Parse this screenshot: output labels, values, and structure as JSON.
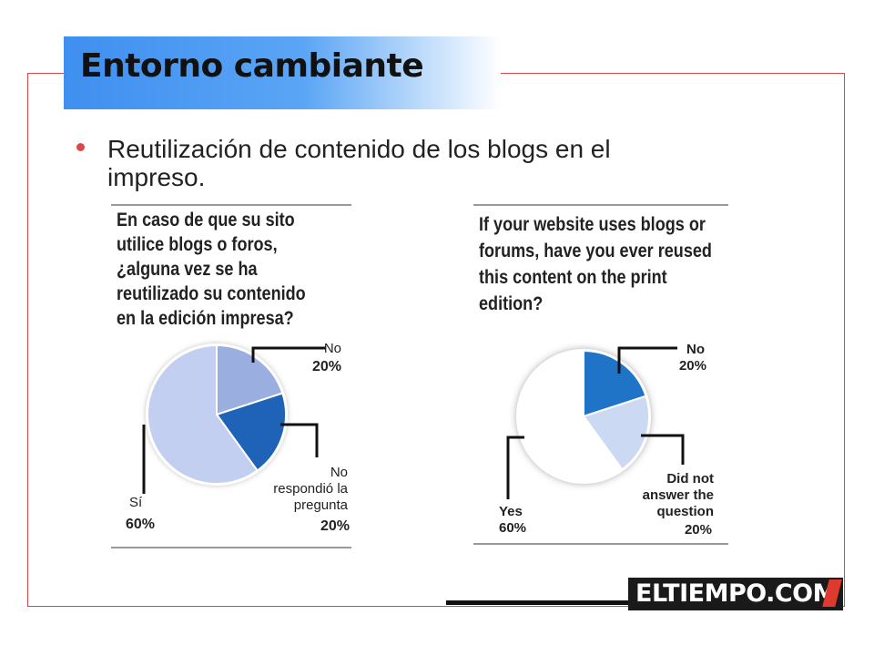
{
  "title": "Entorno cambiante",
  "bullet": "Reutilización de contenido de los blogs en el impreso.",
  "logo": "ELTIEMPO.COM",
  "chart_data": [
    {
      "type": "pie",
      "title": "En caso de que su sito utilice blogs o foros, ¿alguna vez se ha reutilizado su contenido en la edición impresa?",
      "slices": [
        {
          "label": "No",
          "value": 20,
          "value_label": "20%",
          "color": "#9aaee0"
        },
        {
          "label": "No respondió la pregunta",
          "value": 20,
          "value_label": "20%",
          "color": "#1f63b8"
        },
        {
          "label": "Sí",
          "value": 60,
          "value_label": "60%",
          "color": "#c3cff0"
        }
      ]
    },
    {
      "type": "pie",
      "title": "If your website uses blogs or forums, have you ever reused this content on the print edition?",
      "slices": [
        {
          "label": "No",
          "value": 20,
          "value_label": "20%",
          "color": "#1f74c8"
        },
        {
          "label": "Did not answer the question",
          "value": 20,
          "value_label": "20%",
          "color": "#cbd9f2"
        },
        {
          "label": "Yes",
          "value": 60,
          "value_label": "60%",
          "color": "#ffffff"
        }
      ]
    }
  ]
}
